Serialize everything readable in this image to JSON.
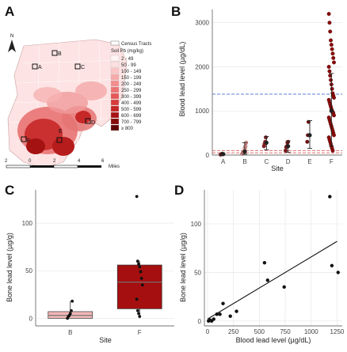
{
  "panel_letters": [
    "A",
    "B",
    "C",
    "D"
  ],
  "map": {
    "legend_tracts": "Census Tracts",
    "legend_title": "Soil Pb (mg/kg)",
    "legend_items": [
      {
        "label": "2 - 49",
        "color": "#fff5f5"
      },
      {
        "label": "50 - 99",
        "color": "#fde0e0"
      },
      {
        "label": "100 - 149",
        "color": "#fbc5c5"
      },
      {
        "label": "150 - 199",
        "color": "#f8a9a9"
      },
      {
        "label": "200 - 249",
        "color": "#f48e8e"
      },
      {
        "label": "250 - 299",
        "color": "#ee7272"
      },
      {
        "label": "300 - 399",
        "color": "#e55757"
      },
      {
        "label": "400 - 499",
        "color": "#d93c3c"
      },
      {
        "label": "500 - 599",
        "color": "#c52626"
      },
      {
        "label": "600 - 699",
        "color": "#a81414"
      },
      {
        "label": "700 - 799",
        "color": "#850808"
      },
      {
        "label": "≥ 800",
        "color": "#5f0000"
      }
    ],
    "sites": [
      "A",
      "B",
      "C",
      "D",
      "E",
      "F"
    ],
    "scale_ticks": [
      "2",
      "0",
      "2",
      "4",
      "6"
    ],
    "scale_unit": "Miles",
    "north": "N"
  },
  "chart_data": [
    {
      "panel": "B",
      "type": "scatter",
      "xlabel": "Site",
      "ylabel": "Blood lead level (µg/dL)",
      "categories": [
        "A",
        "B",
        "C",
        "D",
        "E",
        "F"
      ],
      "ylim": [
        0,
        3300
      ],
      "yticks": [
        0,
        1000,
        2000,
        3000
      ],
      "grid": true,
      "reference_lines": [
        {
          "y": 1380,
          "color": "#5b7fd6",
          "style": "dashed"
        },
        {
          "y": 100,
          "color": "#e07070",
          "style": "dashed"
        },
        {
          "y": 50,
          "color": "#e07070",
          "style": "dashed"
        }
      ],
      "series": [
        {
          "category": "A",
          "color": "#6a2a2a",
          "mean": 20,
          "low": 0,
          "high": 40,
          "points": [
            10,
            20,
            25,
            30
          ]
        },
        {
          "category": "B",
          "color": "#e89a9a",
          "mean": 80,
          "low": 20,
          "high": 280,
          "points": [
            30,
            50,
            60,
            80,
            150,
            200,
            280
          ]
        },
        {
          "category": "C",
          "color": "#8a2020",
          "mean": 280,
          "low": 120,
          "high": 420,
          "points": [
            200,
            250,
            300,
            400
          ]
        },
        {
          "category": "D",
          "color": "#7a1818",
          "mean": 200,
          "low": 60,
          "high": 320,
          "points": [
            100,
            180,
            200,
            280,
            300
          ]
        },
        {
          "category": "E",
          "color": "#6d1010",
          "mean": 450,
          "low": 150,
          "high": 780,
          "points": [
            300,
            450,
            750
          ]
        },
        {
          "category": "F",
          "color": "#8b0a0a",
          "mean": 1000,
          "low": 200,
          "high": 1850,
          "points": [
            3200,
            3000,
            2800,
            2600,
            2500,
            2400,
            2300,
            2200,
            2100,
            2000,
            1900,
            1800,
            1700,
            1600,
            1500,
            1400,
            1350,
            1300,
            1250,
            1200,
            1150,
            1100,
            1050,
            1000,
            980,
            950,
            900,
            850,
            800,
            750,
            700,
            650,
            600,
            550,
            500,
            450,
            400,
            350,
            300,
            250,
            200,
            150,
            100
          ]
        }
      ]
    },
    {
      "panel": "C",
      "type": "box",
      "xlabel": "Site",
      "ylabel": "Bone lead level (µg/g)",
      "categories": [
        "B",
        "F"
      ],
      "ylim": [
        -8,
        135
      ],
      "yticks": [
        0,
        50,
        100
      ],
      "grid": true,
      "boxes": [
        {
          "category": "B",
          "color": "#f2b6b6",
          "q1": 0,
          "median": 3,
          "q3": 7,
          "whisker_low": 0,
          "whisker_high": 18,
          "points": [
            0,
            2,
            3,
            5,
            8,
            18
          ]
        },
        {
          "category": "F",
          "color": "#a50f0f",
          "q1": 10,
          "median": 38,
          "q3": 56,
          "whisker_low": 0,
          "whisker_high": 60,
          "points": [
            128,
            60,
            57,
            54,
            49,
            42,
            35,
            20,
            8,
            5,
            2
          ]
        }
      ]
    },
    {
      "panel": "D",
      "type": "scatter",
      "xlabel": "Blood lead level (µg/dL)",
      "ylabel": "Bone lead level (µg/g)",
      "xlim": [
        -30,
        1300
      ],
      "ylim": [
        -5,
        135
      ],
      "xticks": [
        0,
        250,
        500,
        750,
        1000,
        1250
      ],
      "yticks": [
        0,
        50,
        100
      ],
      "grid": true,
      "points": [
        {
          "x": 10,
          "y": 0
        },
        {
          "x": 25,
          "y": 1
        },
        {
          "x": 40,
          "y": 0
        },
        {
          "x": 60,
          "y": 2
        },
        {
          "x": 90,
          "y": 7
        },
        {
          "x": 120,
          "y": 7
        },
        {
          "x": 150,
          "y": 18
        },
        {
          "x": 220,
          "y": 5
        },
        {
          "x": 280,
          "y": 10
        },
        {
          "x": 550,
          "y": 60
        },
        {
          "x": 580,
          "y": 42
        },
        {
          "x": 740,
          "y": 35
        },
        {
          "x": 1180,
          "y": 128
        },
        {
          "x": 1200,
          "y": 57
        },
        {
          "x": 1260,
          "y": 50
        }
      ],
      "fit_line": {
        "x0": 0,
        "y0": 2,
        "x1": 1250,
        "y1": 82
      }
    }
  ]
}
